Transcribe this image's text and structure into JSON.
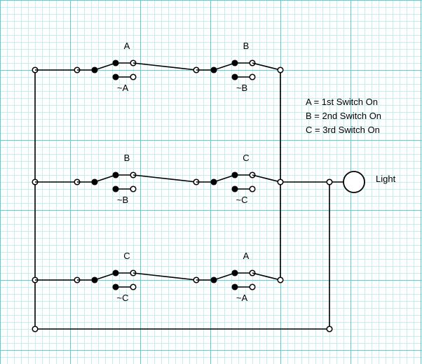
{
  "switch_labels": {
    "row1": {
      "sw1": "A",
      "sw1_alt": "~A",
      "sw2": "B",
      "sw2_alt": "~B"
    },
    "row2": {
      "sw1": "B",
      "sw1_alt": "~B",
      "sw2": "C",
      "sw2_alt": "~C"
    },
    "row3": {
      "sw1": "C",
      "sw1_alt": "~C",
      "sw2": "A",
      "sw2_alt": "~A"
    }
  },
  "legend": [
    "A = 1st Switch On",
    "B = 2nd Switch On",
    "C = 3rd Switch On"
  ],
  "light_label": "Light"
}
